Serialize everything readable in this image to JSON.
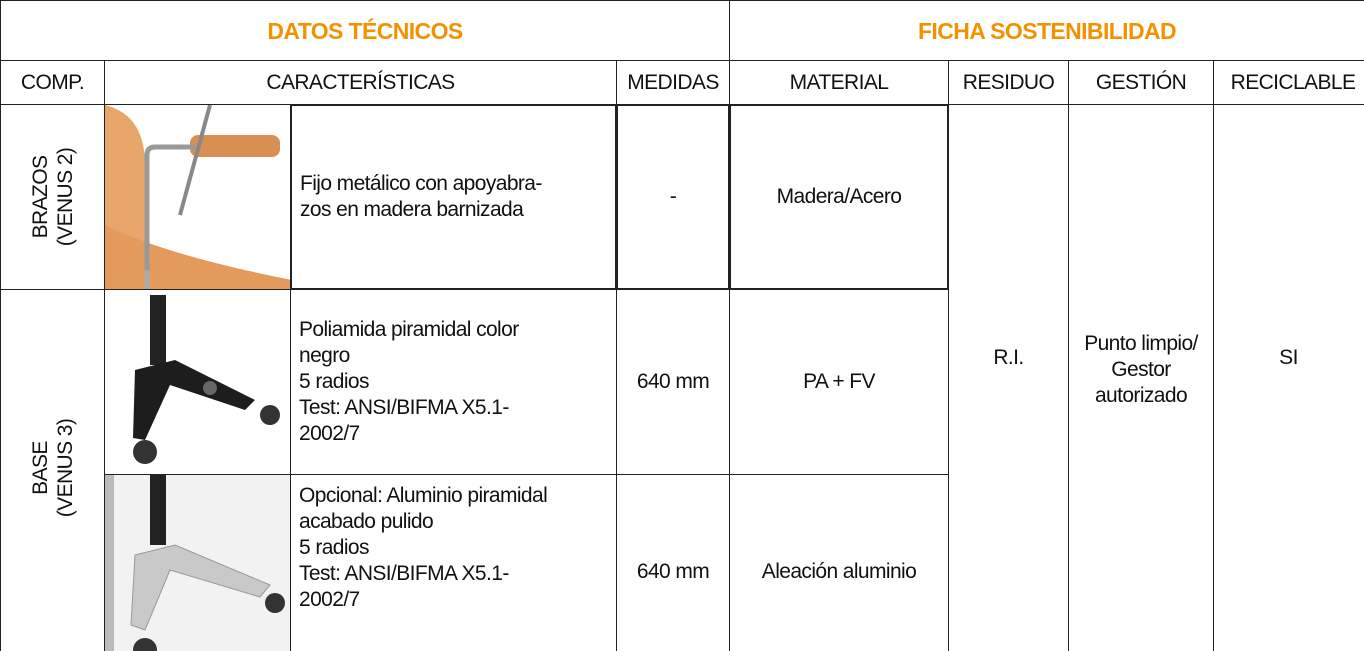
{
  "header": {
    "datos_tecnicos": "DATOS TÉCNICOS",
    "ficha_sostenibilidad": "FICHA SOSTENIBILIDAD"
  },
  "table": {
    "columns": [
      "COMP.",
      "CARACTERÍSTICAS",
      "MEDIDAS",
      "MATERIAL",
      "RESIDUO",
      "GESTIÓN",
      "RECICLABLE"
    ],
    "rows": [
      {
        "component": [
          "BRAZOS",
          "(VENUS 2)"
        ],
        "description": [
          "Fijo metálico con apoyabra-",
          "zos en madera barnizada"
        ],
        "medidas": "-",
        "material": "Madera/Acero"
      },
      {
        "component": [
          "BASE",
          "(VENUS 3)"
        ],
        "description": [
          "Poliamida piramidal color",
          "negro",
          "5 radios",
          "Test: ANSI/BIFMA X5.1-",
          "2002/7"
        ],
        "medidas": "640 mm",
        "material": "PA + FV"
      },
      {
        "description": [
          "Opcional: Aluminio piramidal",
          "acabado pulido",
          "5 radios",
          "Test: ANSI/BIFMA X5.1-",
          "2002/7"
        ],
        "medidas": "640 mm",
        "material": "Aleación aluminio"
      }
    ],
    "residuo": "R.I.",
    "gestion": [
      "Punto limpio/",
      "Gestor",
      "autorizado"
    ],
    "reciclable": "SI"
  }
}
